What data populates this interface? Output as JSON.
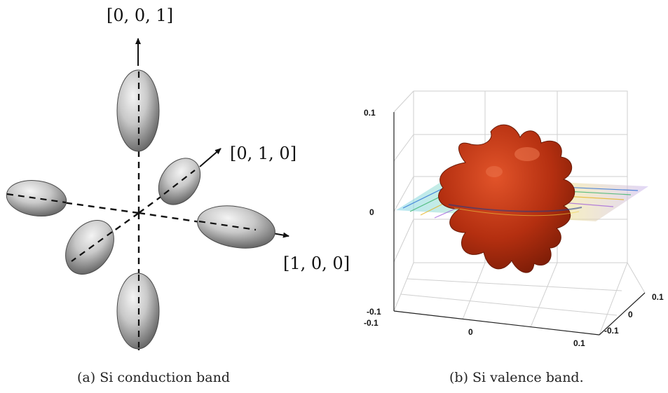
{
  "panel_a": {
    "caption": "(a) Si conduction band",
    "axes": {
      "z": "[0, 0, 1]",
      "y": "[0, 1, 0]",
      "x": "[1, 0, 0]"
    }
  },
  "panel_b": {
    "caption": "(b) Si valence band.",
    "ticks": {
      "vertical": [
        "0.1",
        "0",
        "-0.1"
      ],
      "front": [
        "-0.1",
        "0",
        "0.1"
      ],
      "side": [
        "0.1",
        "0",
        "-0.1"
      ]
    }
  },
  "colors": {
    "surface": "#c03414",
    "ellipsoid": "#c9c9c9",
    "grid": "#cfcfcf"
  }
}
